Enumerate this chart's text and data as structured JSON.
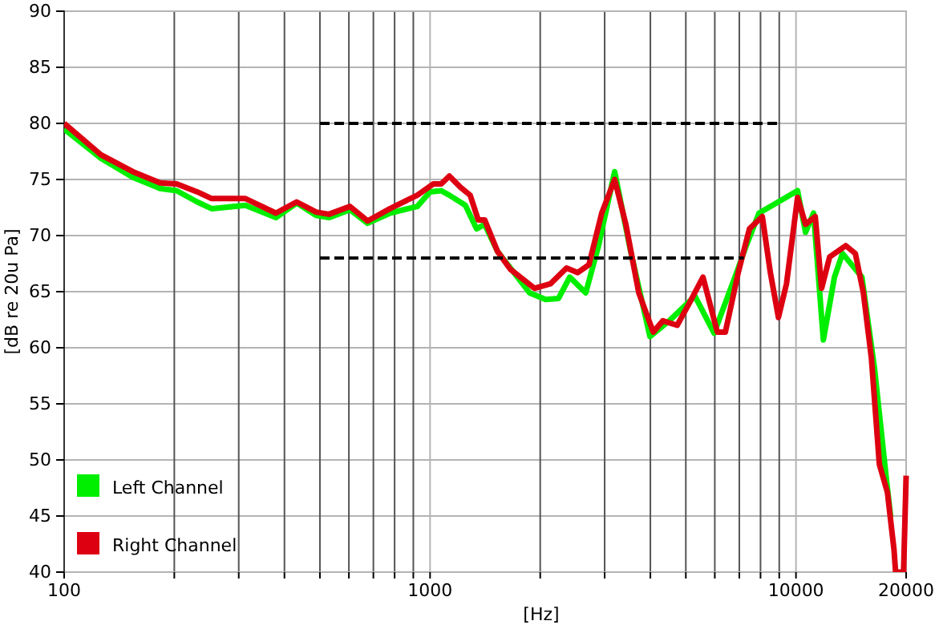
{
  "chart_data": {
    "type": "line",
    "xlabel": "[Hz]",
    "ylabel": "[dB re 20u Pa]",
    "log": "x",
    "grid": true,
    "legend": "bottom left",
    "line_style": "solid",
    "marker": "none",
    "xlim": [
      100,
      20000
    ],
    "xticks": [
      100,
      {
        "value": 200,
        "label": null
      },
      {
        "value": 300,
        "label": null
      },
      {
        "value": 400,
        "label": null
      },
      {
        "value": 500,
        "label": null
      },
      {
        "value": 600,
        "label": null
      },
      {
        "value": 700,
        "label": null
      },
      {
        "value": 800,
        "label": null
      },
      {
        "value": 900,
        "label": null
      },
      1000,
      {
        "value": 2000,
        "label": null
      },
      {
        "value": 3000,
        "label": null
      },
      {
        "value": 4000,
        "label": null
      },
      {
        "value": 5000,
        "label": null
      },
      {
        "value": 6000,
        "label": null
      },
      {
        "value": 7000,
        "label": null
      },
      {
        "value": 8000,
        "label": null
      },
      {
        "value": 9000,
        "label": null
      },
      10000,
      20000
    ],
    "ylim": [
      40,
      90
    ],
    "yticks": [
      40,
      45,
      50,
      55,
      60,
      65,
      70,
      75,
      80,
      85,
      90
    ],
    "series": [
      {
        "name": "Left Channel",
        "color": "#00ee00",
        "x": [
          100,
          126,
          154,
          183,
          203,
          231,
          253,
          313,
          379,
          432,
          488,
          529,
          604,
          675,
          777,
          923,
          1000,
          1073,
          1129,
          1249,
          1340,
          1410,
          1528,
          1870,
          2069,
          2244,
          2408,
          2664,
          2887,
          3195,
          3533,
          3990,
          4504,
          5297,
          5975,
          6953,
          7311,
          7925,
          10100,
          10620,
          11170,
          11880,
          12740,
          13400,
          15140,
          16400,
          17620,
          18150
        ],
        "values": [
          79.5,
          76.9,
          75.2,
          74.2,
          74.0,
          73.0,
          72.4,
          72.7,
          71.6,
          72.9,
          71.8,
          71.6,
          72.3,
          71.1,
          72.0,
          72.6,
          73.9,
          74.0,
          73.6,
          72.7,
          70.6,
          71.0,
          68.6,
          64.9,
          64.3,
          64.4,
          66.3,
          64.9,
          69.1,
          75.7,
          68.6,
          61.0,
          62.4,
          64.6,
          61.3,
          67.1,
          69.1,
          72.0,
          74.0,
          70.3,
          72.0,
          60.7,
          66.3,
          68.4,
          66.3,
          58.1,
          48.6,
          44.9
        ]
      },
      {
        "name": "Right Channel",
        "color": "#dd0011",
        "x": [
          100,
          126,
          154,
          183,
          203,
          231,
          253,
          313,
          379,
          432,
          488,
          529,
          604,
          675,
          777,
          923,
          1020,
          1073,
          1129,
          1211,
          1287,
          1354,
          1410,
          1528,
          1657,
          1928,
          2133,
          2360,
          2533,
          2718,
          2945,
          3195,
          3428,
          3718,
          4073,
          4327,
          4735,
          5135,
          5570,
          6095,
          6412,
          6953,
          7462,
          8091,
          8511,
          8954,
          9420,
          10100,
          10620,
          11290,
          11750,
          12360,
          13680,
          14530,
          15280,
          16070,
          16900,
          17780,
          18530,
          18720,
          19680,
          20000
        ],
        "values": [
          80,
          77.2,
          75.7,
          74.7,
          74.6,
          73.9,
          73.3,
          73.3,
          72.0,
          73.0,
          72.1,
          71.9,
          72.6,
          71.3,
          72.4,
          73.6,
          74.6,
          74.6,
          75.3,
          74.3,
          73.6,
          71.4,
          71.4,
          68.6,
          67.0,
          65.3,
          65.7,
          67.1,
          66.7,
          67.4,
          72.0,
          75.0,
          71.0,
          64.9,
          61.4,
          62.4,
          62.0,
          64.1,
          66.3,
          61.4,
          61.4,
          66.7,
          70.6,
          71.7,
          66.7,
          62.7,
          65.7,
          73.4,
          71.0,
          71.7,
          65.3,
          68.1,
          69.1,
          68.4,
          64.9,
          59.1,
          49.6,
          47.1,
          42.0,
          40,
          40,
          48.6
        ]
      },
      {
        "type": "line",
        "color": "#000000",
        "line_style": "dashed",
        "x": [
          500,
          9000
        ],
        "values": [
          80,
          80
        ]
      },
      {
        "type": "line",
        "color": "#000000",
        "line_style": "dashed",
        "x": [
          500,
          7200
        ],
        "values": [
          68,
          68
        ]
      }
    ]
  }
}
